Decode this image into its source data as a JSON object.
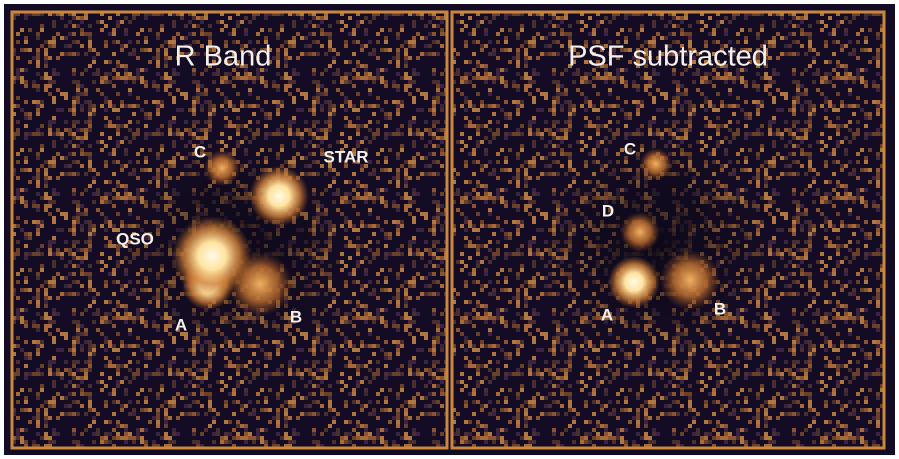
{
  "panels": [
    {
      "title": "R Band",
      "labels": [
        "C",
        "STAR",
        "QSO",
        "A",
        "B"
      ]
    },
    {
      "title": "PSF subtracted",
      "labels": [
        "C",
        "D",
        "A",
        "B"
      ]
    }
  ]
}
